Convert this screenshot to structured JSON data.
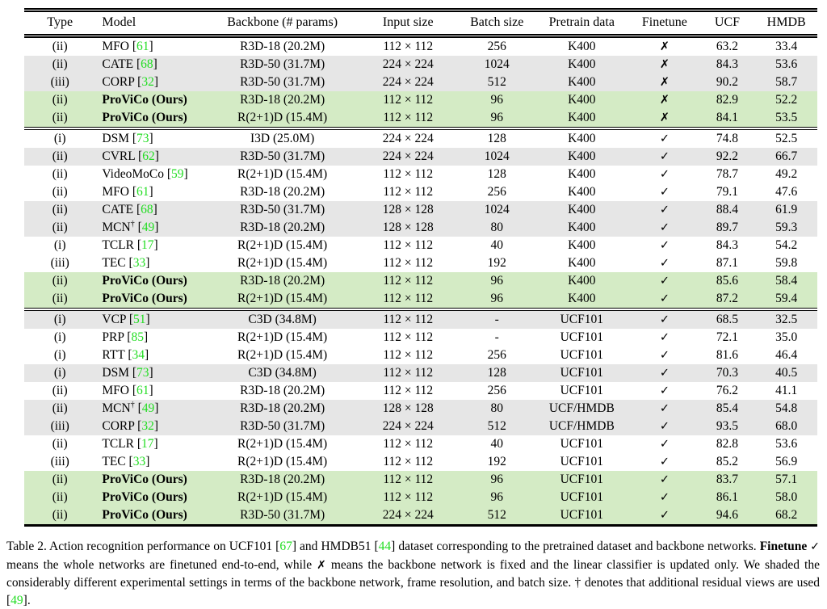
{
  "colors": {
    "gray_row": "#e6e6e6",
    "green_row": "#d4ebc5",
    "citation_green": "#22dd22"
  },
  "glyphs": {
    "check": "✓",
    "cross": "✗",
    "dagger": "†"
  },
  "table": {
    "headers": [
      "Type",
      "Model",
      "Backbone (# params)",
      "Input size",
      "Batch size",
      "Pretrain data",
      "Finetune",
      "UCF",
      "HMDB"
    ],
    "rows": [
      {
        "type": "(ii)",
        "model": "MFO",
        "cite": "61",
        "dagger": false,
        "ours": false,
        "backbone": "R3D-18 (20.2M)",
        "input": "112 × 112",
        "batch": "256",
        "pretrain": "K400",
        "finetune": "cross",
        "ucf": "63.2",
        "hmdb": "33.4",
        "shade": "none",
        "section_start": false
      },
      {
        "type": "(ii)",
        "model": "CATE",
        "cite": "68",
        "dagger": false,
        "ours": false,
        "backbone": "R3D-50 (31.7M)",
        "input": "224 × 224",
        "batch": "1024",
        "pretrain": "K400",
        "finetune": "cross",
        "ucf": "84.3",
        "hmdb": "53.6",
        "shade": "gray",
        "section_start": false
      },
      {
        "type": "(iii)",
        "model": "CORP",
        "cite": "32",
        "dagger": false,
        "ours": false,
        "backbone": "R3D-50 (31.7M)",
        "input": "224 × 224",
        "batch": "512",
        "pretrain": "K400",
        "finetune": "cross",
        "ucf": "90.2",
        "hmdb": "58.7",
        "shade": "gray",
        "section_start": false
      },
      {
        "type": "(ii)",
        "model": "ProViCo (Ours)",
        "cite": null,
        "dagger": false,
        "ours": true,
        "backbone": "R3D-18 (20.2M)",
        "input": "112 × 112",
        "batch": "96",
        "pretrain": "K400",
        "finetune": "cross",
        "ucf": "82.9",
        "hmdb": "52.2",
        "shade": "green",
        "section_start": false
      },
      {
        "type": "(ii)",
        "model": "ProViCo (Ours)",
        "cite": null,
        "dagger": false,
        "ours": true,
        "backbone": "R(2+1)D (15.4M)",
        "input": "112 × 112",
        "batch": "96",
        "pretrain": "K400",
        "finetune": "cross",
        "ucf": "84.1",
        "hmdb": "53.5",
        "shade": "green",
        "section_start": false
      },
      {
        "type": "(i)",
        "model": "DSM",
        "cite": "73",
        "dagger": false,
        "ours": false,
        "backbone": "I3D (25.0M)",
        "input": "224 × 224",
        "batch": "128",
        "pretrain": "K400",
        "finetune": "check",
        "ucf": "74.8",
        "hmdb": "52.5",
        "shade": "none",
        "section_start": true
      },
      {
        "type": "(ii)",
        "model": "CVRL",
        "cite": "62",
        "dagger": false,
        "ours": false,
        "backbone": "R3D-50 (31.7M)",
        "input": "224 × 224",
        "batch": "1024",
        "pretrain": "K400",
        "finetune": "check",
        "ucf": "92.2",
        "hmdb": "66.7",
        "shade": "gray",
        "section_start": false
      },
      {
        "type": "(ii)",
        "model": "VideoMoCo",
        "cite": "59",
        "dagger": false,
        "ours": false,
        "backbone": "R(2+1)D (15.4M)",
        "input": "112 × 112",
        "batch": "128",
        "pretrain": "K400",
        "finetune": "check",
        "ucf": "78.7",
        "hmdb": "49.2",
        "shade": "none",
        "section_start": false
      },
      {
        "type": "(ii)",
        "model": "MFO",
        "cite": "61",
        "dagger": false,
        "ours": false,
        "backbone": "R3D-18 (20.2M)",
        "input": "112 × 112",
        "batch": "256",
        "pretrain": "K400",
        "finetune": "check",
        "ucf": "79.1",
        "hmdb": "47.6",
        "shade": "none",
        "section_start": false
      },
      {
        "type": "(ii)",
        "model": "CATE",
        "cite": "68",
        "dagger": false,
        "ours": false,
        "backbone": "R3D-50 (31.7M)",
        "input": "128 × 128",
        "batch": "1024",
        "pretrain": "K400",
        "finetune": "check",
        "ucf": "88.4",
        "hmdb": "61.9",
        "shade": "gray",
        "section_start": false
      },
      {
        "type": "(ii)",
        "model": "MCN",
        "cite": "49",
        "dagger": true,
        "ours": false,
        "backbone": "R3D-18 (20.2M)",
        "input": "128 × 128",
        "batch": "80",
        "pretrain": "K400",
        "finetune": "check",
        "ucf": "89.7",
        "hmdb": "59.3",
        "shade": "gray",
        "section_start": false
      },
      {
        "type": "(i)",
        "model": "TCLR",
        "cite": "17",
        "dagger": false,
        "ours": false,
        "backbone": "R(2+1)D (15.4M)",
        "input": "112 × 112",
        "batch": "40",
        "pretrain": "K400",
        "finetune": "check",
        "ucf": "84.3",
        "hmdb": "54.2",
        "shade": "none",
        "section_start": false
      },
      {
        "type": "(iii)",
        "model": "TEC",
        "cite": "33",
        "dagger": false,
        "ours": false,
        "backbone": "R(2+1)D (15.4M)",
        "input": "112 × 112",
        "batch": "192",
        "pretrain": "K400",
        "finetune": "check",
        "ucf": "87.1",
        "hmdb": "59.8",
        "shade": "none",
        "section_start": false
      },
      {
        "type": "(ii)",
        "model": "ProViCo (Ours)",
        "cite": null,
        "dagger": false,
        "ours": true,
        "backbone": "R3D-18 (20.2M)",
        "input": "112 × 112",
        "batch": "96",
        "pretrain": "K400",
        "finetune": "check",
        "ucf": "85.6",
        "hmdb": "58.4",
        "shade": "green",
        "section_start": false
      },
      {
        "type": "(ii)",
        "model": "ProViCo (Ours)",
        "cite": null,
        "dagger": false,
        "ours": true,
        "backbone": "R(2+1)D (15.4M)",
        "input": "112 × 112",
        "batch": "96",
        "pretrain": "K400",
        "finetune": "check",
        "ucf": "87.2",
        "hmdb": "59.4",
        "shade": "green",
        "section_start": false
      },
      {
        "type": "(i)",
        "model": "VCP",
        "cite": "51",
        "dagger": false,
        "ours": false,
        "backbone": "C3D (34.8M)",
        "input": "112 × 112",
        "batch": "-",
        "pretrain": "UCF101",
        "finetune": "check",
        "ucf": "68.5",
        "hmdb": "32.5",
        "shade": "gray",
        "section_start": true
      },
      {
        "type": "(i)",
        "model": "PRP",
        "cite": "85",
        "dagger": false,
        "ours": false,
        "backbone": "R(2+1)D (15.4M)",
        "input": "112 × 112",
        "batch": "-",
        "pretrain": "UCF101",
        "finetune": "check",
        "ucf": "72.1",
        "hmdb": "35.0",
        "shade": "none",
        "section_start": false
      },
      {
        "type": "(i)",
        "model": "RTT",
        "cite": "34",
        "dagger": false,
        "ours": false,
        "backbone": "R(2+1)D (15.4M)",
        "input": "112 × 112",
        "batch": "256",
        "pretrain": "UCF101",
        "finetune": "check",
        "ucf": "81.6",
        "hmdb": "46.4",
        "shade": "none",
        "section_start": false
      },
      {
        "type": "(i)",
        "model": "DSM",
        "cite": "73",
        "dagger": false,
        "ours": false,
        "backbone": "C3D (34.8M)",
        "input": "112 × 112",
        "batch": "128",
        "pretrain": "UCF101",
        "finetune": "check",
        "ucf": "70.3",
        "hmdb": "40.5",
        "shade": "gray",
        "section_start": false
      },
      {
        "type": "(ii)",
        "model": "MFO",
        "cite": "61",
        "dagger": false,
        "ours": false,
        "backbone": "R3D-18 (20.2M)",
        "input": "112 × 112",
        "batch": "256",
        "pretrain": "UCF101",
        "finetune": "check",
        "ucf": "76.2",
        "hmdb": "41.1",
        "shade": "none",
        "section_start": false
      },
      {
        "type": "(ii)",
        "model": "MCN",
        "cite": "49",
        "dagger": true,
        "ours": false,
        "backbone": "R3D-18 (20.2M)",
        "input": "128 × 128",
        "batch": "80",
        "pretrain": "UCF/HMDB",
        "finetune": "check",
        "ucf": "85.4",
        "hmdb": "54.8",
        "shade": "gray",
        "section_start": false
      },
      {
        "type": "(iii)",
        "model": "CORP",
        "cite": "32",
        "dagger": false,
        "ours": false,
        "backbone": "R3D-50 (31.7M)",
        "input": "224 × 224",
        "batch": "512",
        "pretrain": "UCF/HMDB",
        "finetune": "check",
        "ucf": "93.5",
        "hmdb": "68.0",
        "shade": "gray",
        "section_start": false
      },
      {
        "type": "(ii)",
        "model": "TCLR",
        "cite": "17",
        "dagger": false,
        "ours": false,
        "backbone": "R(2+1)D (15.4M)",
        "input": "112 × 112",
        "batch": "40",
        "pretrain": "UCF101",
        "finetune": "check",
        "ucf": "82.8",
        "hmdb": "53.6",
        "shade": "none",
        "section_start": false
      },
      {
        "type": "(iii)",
        "model": "TEC",
        "cite": "33",
        "dagger": false,
        "ours": false,
        "backbone": "R(2+1)D (15.4M)",
        "input": "112 × 112",
        "batch": "192",
        "pretrain": "UCF101",
        "finetune": "check",
        "ucf": "85.2",
        "hmdb": "56.9",
        "shade": "none",
        "section_start": false
      },
      {
        "type": "(ii)",
        "model": "ProViCo (Ours)",
        "cite": null,
        "dagger": false,
        "ours": true,
        "backbone": "R3D-18 (20.2M)",
        "input": "112 × 112",
        "batch": "96",
        "pretrain": "UCF101",
        "finetune": "check",
        "ucf": "83.7",
        "hmdb": "57.1",
        "shade": "green",
        "section_start": false
      },
      {
        "type": "(ii)",
        "model": "ProViCo (Ours)",
        "cite": null,
        "dagger": false,
        "ours": true,
        "backbone": "R(2+1)D (15.4M)",
        "input": "112 × 112",
        "batch": "96",
        "pretrain": "UCF101",
        "finetune": "check",
        "ucf": "86.1",
        "hmdb": "58.0",
        "shade": "green",
        "section_start": false
      },
      {
        "type": "(ii)",
        "model": "ProViCo (Ours)",
        "cite": null,
        "dagger": false,
        "ours": true,
        "backbone": "R3D-50 (31.7M)",
        "input": "224 × 224",
        "batch": "512",
        "pretrain": "UCF101",
        "finetune": "check",
        "ucf": "94.6",
        "hmdb": "68.2",
        "shade": "green",
        "section_start": false
      }
    ]
  },
  "caption": {
    "segments": [
      {
        "t": "Table 2. Action recognition performance on UCF101 ["
      },
      {
        "t": "67",
        "s": "cite"
      },
      {
        "t": "] and HMDB51 ["
      },
      {
        "t": "44",
        "s": "cite"
      },
      {
        "t": "] dataset corresponding to the pretrained dataset and backbone networks. "
      },
      {
        "t": "Finetune",
        "s": "bold"
      },
      {
        "t": " "
      },
      {
        "t": "✓",
        "s": "glyph"
      },
      {
        "t": " means the whole networks are finetuned end-to-end, while "
      },
      {
        "t": "✗",
        "s": "glyph"
      },
      {
        "t": " means the backbone network is fixed and the linear classifier is updated only. We shaded the considerably different experimental settings in terms of the backbone network, frame resolution, and batch size. † denotes that additional residual views are used ["
      },
      {
        "t": "49",
        "s": "cite"
      },
      {
        "t": "]."
      }
    ]
  }
}
